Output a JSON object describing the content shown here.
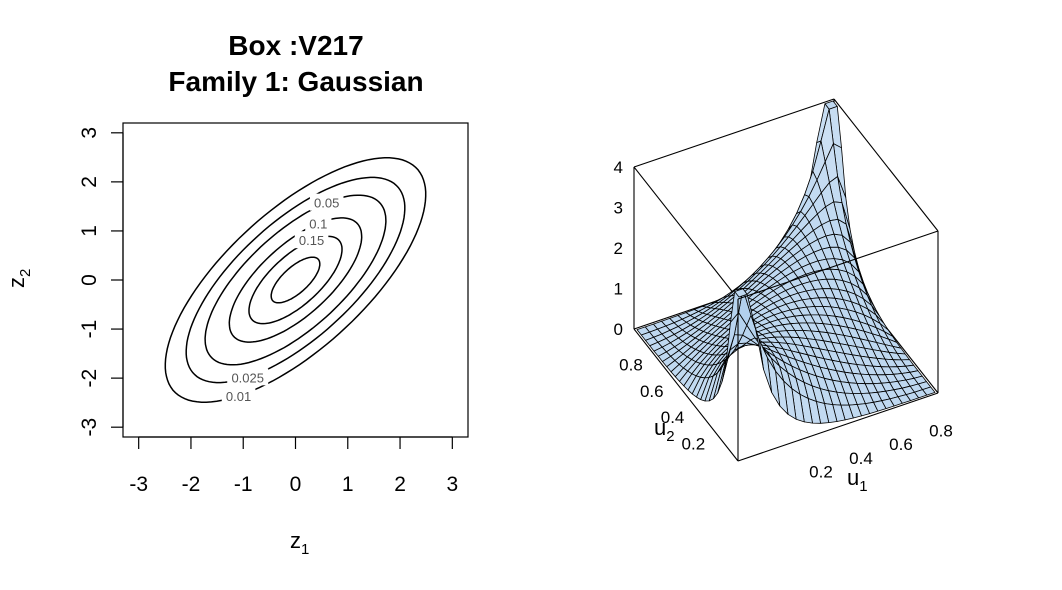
{
  "title": {
    "line1": "Box :V217",
    "line2": "Family 1: Gaussian"
  },
  "chart_data": [
    {
      "type": "contour",
      "title": "Box :V217 / Family 1: Gaussian",
      "xlabel": {
        "main": "z",
        "sub": "1"
      },
      "ylabel": {
        "main": "z",
        "sub": "2"
      },
      "xlim": [
        -3.3,
        3.3
      ],
      "ylim": [
        -3.2,
        3.2
      ],
      "xticks": [
        "-3",
        "-2",
        "-1",
        "0",
        "1",
        "2",
        "3"
      ],
      "yticks": [
        "-3",
        "-2",
        "-1",
        "0",
        "1",
        "2",
        "3"
      ],
      "correlation": 0.7,
      "levels": [
        {
          "value": 0.2,
          "label": ""
        },
        {
          "value": 0.15,
          "label": "0.15"
        },
        {
          "value": 0.1,
          "label": "0.1"
        },
        {
          "value": 0.05,
          "label": "0.05"
        },
        {
          "value": 0.025,
          "label": "0.025"
        },
        {
          "value": 0.01,
          "label": "0.01"
        }
      ],
      "line_color": "#000000"
    },
    {
      "type": "surface",
      "xlabel": {
        "main": "u",
        "sub": "1"
      },
      "ylabel": {
        "main": "u",
        "sub": "2"
      },
      "zlim": [
        0,
        4
      ],
      "xticks": [
        "0.2",
        "0.4",
        "0.6",
        "0.8"
      ],
      "yticks": [
        "0.2",
        "0.4",
        "0.6",
        "0.8"
      ],
      "zticks": [
        "0",
        "1",
        "2",
        "3",
        "4"
      ],
      "surface_color": "#9cc3e8",
      "grid": true
    }
  ]
}
